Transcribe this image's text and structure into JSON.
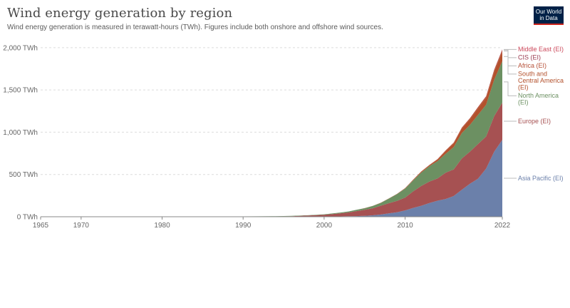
{
  "header": {
    "title": "Wind energy generation by region",
    "subtitle": "Wind energy generation is measured in terawatt-hours (TWh). Figures include both onshore and offshore wind sources.",
    "logo_line1": "Our World",
    "logo_line2": "in Data"
  },
  "colors": {
    "Asia Pacific (EI)": "#6b80aa",
    "Europe (EI)": "#a65152",
    "North America (EI)": "#6c9062",
    "South and Central America (EI)": "#b3512c",
    "Africa (EI)": "#b65038",
    "CIS (EI)": "#9a3b50",
    "Middle East (EI)": "#cc4a5c"
  },
  "chart_data": {
    "type": "area",
    "stacked": true,
    "x": [
      1965,
      1970,
      1975,
      1980,
      1985,
      1988,
      1990,
      1992,
      1994,
      1996,
      1998,
      2000,
      2002,
      2003,
      2004,
      2005,
      2006,
      2007,
      2008,
      2009,
      2010,
      2011,
      2012,
      2013,
      2014,
      2015,
      2016,
      2017,
      2018,
      2019,
      2020,
      2021,
      2022
    ],
    "xticks": [
      "1965",
      "1970",
      "1980",
      "1990",
      "2000",
      "2010",
      "2022"
    ],
    "yticks": [
      "0 TWh",
      "500 TWh",
      "1,000 TWh",
      "1,500 TWh",
      "2,000 TWh"
    ],
    "ylim": [
      0,
      2100
    ],
    "series": [
      {
        "name": "Asia Pacific (EI)",
        "values": [
          0,
          0,
          0,
          0,
          0,
          0,
          0,
          0,
          0,
          0,
          1,
          2,
          4,
          6,
          8,
          11,
          17,
          26,
          40,
          53,
          75,
          105,
          130,
          162,
          190,
          210,
          245,
          320,
          390,
          450,
          570,
          770,
          910
        ]
      },
      {
        "name": "Europe (EI)",
        "values": [
          0,
          0,
          0,
          0,
          0,
          0.1,
          1,
          2,
          4,
          7,
          14,
          22,
          36,
          45,
          59,
          71,
          83,
          105,
          120,
          135,
          152,
          195,
          235,
          255,
          263,
          310,
          315,
          370,
          380,
          410,
          380,
          420,
          440
        ]
      },
      {
        "name": "North America (EI)",
        "values": [
          0,
          0,
          0,
          0,
          0,
          1,
          3,
          3,
          3,
          3,
          3,
          5,
          10,
          11,
          15,
          18,
          27,
          33,
          55,
          79,
          106,
          130,
          158,
          182,
          205,
          225,
          265,
          300,
          315,
          345,
          375,
          430,
          490
        ]
      },
      {
        "name": "South and Central America (EI)",
        "values": [
          0,
          0,
          0,
          0,
          0,
          0,
          0,
          0,
          0,
          0,
          0,
          0,
          0,
          0,
          0,
          1,
          1,
          1,
          1,
          2,
          3,
          6,
          9,
          11,
          18,
          31,
          42,
          52,
          65,
          75,
          80,
          95,
          110
        ]
      },
      {
        "name": "Africa (EI)",
        "values": [
          0,
          0,
          0,
          0,
          0,
          0,
          0,
          0,
          0,
          0,
          0,
          0,
          0,
          0,
          1,
          1,
          1,
          2,
          2,
          2,
          3,
          3,
          4,
          4,
          6,
          8,
          10,
          12,
          15,
          17,
          18,
          20,
          22
        ]
      },
      {
        "name": "CIS (EI)",
        "values": [
          0,
          0,
          0,
          0,
          0,
          0,
          0,
          0,
          0,
          0,
          0,
          0,
          0,
          0,
          0,
          0,
          0,
          0,
          0,
          0,
          0,
          0,
          0,
          0,
          0,
          0,
          0,
          0,
          0,
          1,
          2,
          3,
          5
        ]
      },
      {
        "name": "Middle East (EI)",
        "values": [
          0,
          0,
          0,
          0,
          0,
          0,
          0,
          0,
          0,
          0,
          0,
          0,
          0,
          0,
          0,
          0,
          0,
          0,
          0,
          0,
          0,
          0,
          0,
          0,
          0,
          0,
          0,
          1,
          1,
          1,
          2,
          3,
          4
        ]
      }
    ],
    "legend_position": "right"
  }
}
